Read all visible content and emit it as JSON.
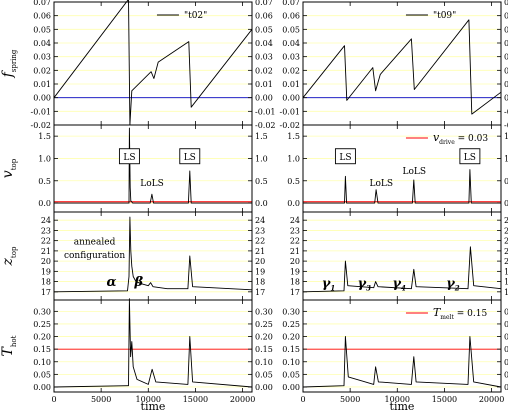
{
  "chart_data": {
    "type": "line",
    "xlabel": "time",
    "xlim": [
      0,
      21000
    ],
    "xticks": [
      0,
      5000,
      10000,
      15000,
      20000
    ],
    "panels": [
      {
        "id": "fs-left",
        "row": 0,
        "col": 0,
        "ylabel": "f",
        "ylabel_sub": "spring",
        "ylim": [
          -0.02,
          0.07
        ],
        "yticks": [
          "-0.02",
          "-0.01",
          "0.00",
          "0.01",
          "0.02",
          "0.03",
          "0.04",
          "0.05",
          "0.06",
          "0.07"
        ],
        "legend": "\"t02\"",
        "hline": {
          "y": 0.0,
          "color": "#0000cc"
        },
        "series": [
          {
            "color": "#000000",
            "points": [
              [
                0,
                0.0
              ],
              [
                7900,
                0.072
              ],
              [
                8050,
                -0.02
              ],
              [
                8250,
                0.005
              ],
              [
                10300,
                0.019
              ],
              [
                10600,
                0.014
              ],
              [
                11050,
                0.026
              ],
              [
                14300,
                0.041
              ],
              [
                14550,
                -0.007
              ],
              [
                21000,
                0.05
              ]
            ]
          }
        ]
      },
      {
        "id": "fs-right",
        "row": 0,
        "col": 1,
        "ylim": [
          -0.02,
          0.07
        ],
        "yticks": [
          "-0.02",
          "-0.01",
          "0.00",
          "0.01",
          "0.02",
          "0.03",
          "0.04",
          "0.05",
          "0.06",
          "0.07"
        ],
        "legend": "\"t09\"",
        "hline": {
          "y": 0.0,
          "color": "#0000cc"
        },
        "series": [
          {
            "color": "#000000",
            "points": [
              [
                0,
                0.0
              ],
              [
                4400,
                0.038
              ],
              [
                4650,
                -0.002
              ],
              [
                7400,
                0.022
              ],
              [
                7700,
                0.005
              ],
              [
                8200,
                0.017
              ],
              [
                11500,
                0.043
              ],
              [
                11800,
                0.006
              ],
              [
                17600,
                0.057
              ],
              [
                17900,
                -0.012
              ],
              [
                21000,
                0.004
              ]
            ]
          }
        ]
      },
      {
        "id": "v-left",
        "row": 1,
        "col": 0,
        "ylabel": "v",
        "ylabel_sub": "top",
        "ylim": [
          -0.2,
          1.75
        ],
        "yticks": [
          "0.0",
          "0.5",
          "1.0",
          "1.5"
        ],
        "hline": {
          "y": 0.03,
          "color": "#ff0000"
        },
        "series": [
          {
            "color": "#000000",
            "points": [
              [
                0,
                0.0
              ],
              [
                7950,
                0.0
              ],
              [
                8000,
                1.68
              ],
              [
                8080,
                0.35
              ],
              [
                8150,
                0.05
              ],
              [
                8350,
                0.0
              ],
              [
                10200,
                0.0
              ],
              [
                10380,
                0.2
              ],
              [
                10550,
                0.0
              ],
              [
                14250,
                0.0
              ],
              [
                14400,
                0.72
              ],
              [
                14550,
                0.0
              ],
              [
                21000,
                0.0
              ]
            ]
          }
        ]
      },
      {
        "id": "v-right",
        "row": 1,
        "col": 1,
        "ylim": [
          -0.2,
          1.75
        ],
        "yticks": [
          "0.0",
          "0.5",
          "1.0",
          "1.5"
        ],
        "legend": "v_drive = 0.03",
        "legend_sym": "v",
        "legend_sub": "drive",
        "legend_val": "= 0.03",
        "hline": {
          "y": 0.03,
          "color": "#ff0000"
        },
        "series": [
          {
            "color": "#000000",
            "points": [
              [
                0,
                0.0
              ],
              [
                4400,
                0.0
              ],
              [
                4500,
                0.6
              ],
              [
                4620,
                0.0
              ],
              [
                7600,
                0.0
              ],
              [
                7750,
                0.3
              ],
              [
                7950,
                0.0
              ],
              [
                11600,
                0.0
              ],
              [
                11750,
                0.52
              ],
              [
                11900,
                0.0
              ],
              [
                17600,
                0.0
              ],
              [
                17700,
                0.75
              ],
              [
                17850,
                0.0
              ],
              [
                21000,
                0.0
              ]
            ]
          }
        ]
      },
      {
        "id": "z-left",
        "row": 2,
        "col": 0,
        "ylabel": "z",
        "ylabel_sub": "top",
        "ylim": [
          16.2,
          24.8
        ],
        "yticks": [
          "17",
          "18",
          "19",
          "20",
          "21",
          "22",
          "23",
          "24"
        ],
        "series": [
          {
            "color": "#000000",
            "points": [
              [
                0,
                17.0
              ],
              [
                7800,
                17.1
              ],
              [
                7950,
                18.5
              ],
              [
                8050,
                24.3
              ],
              [
                8150,
                21.0
              ],
              [
                8250,
                19.5
              ],
              [
                8400,
                18.5
              ],
              [
                8700,
                18.0
              ],
              [
                9200,
                17.8
              ],
              [
                10000,
                17.6
              ],
              [
                10250,
                17.9
              ],
              [
                10500,
                17.5
              ],
              [
                12000,
                17.3
              ],
              [
                14200,
                17.3
              ],
              [
                14400,
                20.5
              ],
              [
                14700,
                17.5
              ],
              [
                21000,
                17.2
              ]
            ]
          }
        ]
      },
      {
        "id": "z-right",
        "row": 2,
        "col": 1,
        "ylim": [
          16.2,
          24.8
        ],
        "yticks": [
          "17",
          "18",
          "19",
          "20",
          "21",
          "22",
          "23",
          "24"
        ],
        "series": [
          {
            "color": "#000000",
            "points": [
              [
                0,
                17.0
              ],
              [
                4350,
                17.1
              ],
              [
                4500,
                20.0
              ],
              [
                4750,
                17.6
              ],
              [
                7500,
                17.4
              ],
              [
                7700,
                18.0
              ],
              [
                7950,
                17.5
              ],
              [
                11500,
                17.3
              ],
              [
                11750,
                19.2
              ],
              [
                12000,
                17.5
              ],
              [
                17500,
                17.3
              ],
              [
                17750,
                21.4
              ],
              [
                18100,
                17.6
              ],
              [
                21000,
                17.3
              ]
            ]
          }
        ]
      },
      {
        "id": "t-left",
        "row": 3,
        "col": 0,
        "ylabel": "T",
        "ylabel_sub": "hot",
        "ylim": [
          -0.02,
          0.345
        ],
        "yticks": [
          "0.00",
          "0.05",
          "0.10",
          "0.15",
          "0.20",
          "0.25",
          "0.30"
        ],
        "hline": {
          "y": 0.15,
          "color": "#ff0000"
        },
        "series": [
          {
            "color": "#000000",
            "points": [
              [
                0,
                0.0
              ],
              [
                7900,
                0.005
              ],
              [
                8000,
                0.35
              ],
              [
                8120,
                0.12
              ],
              [
                8250,
                0.18
              ],
              [
                8400,
                0.08
              ],
              [
                8800,
                0.03
              ],
              [
                10000,
                0.01
              ],
              [
                10400,
                0.07
              ],
              [
                10800,
                0.02
              ],
              [
                14200,
                0.01
              ],
              [
                14400,
                0.2
              ],
              [
                14700,
                0.02
              ],
              [
                21000,
                0.0
              ]
            ]
          }
        ]
      },
      {
        "id": "t-right",
        "row": 3,
        "col": 1,
        "ylim": [
          -0.02,
          0.345
        ],
        "yticks": [
          "0.00",
          "0.05",
          "0.10",
          "0.15",
          "0.20",
          "0.25",
          "0.30"
        ],
        "legend": "T_melt = 0.15",
        "legend_sym": "T",
        "legend_sub": "melt",
        "legend_val": "= 0.15",
        "hline": {
          "y": 0.15,
          "color": "#ff0000"
        },
        "series": [
          {
            "color": "#000000",
            "points": [
              [
                0,
                0.0
              ],
              [
                4350,
                0.005
              ],
              [
                4500,
                0.2
              ],
              [
                4800,
                0.04
              ],
              [
                7500,
                0.01
              ],
              [
                7700,
                0.08
              ],
              [
                8000,
                0.02
              ],
              [
                11500,
                0.01
              ],
              [
                11750,
                0.12
              ],
              [
                12000,
                0.02
              ],
              [
                17500,
                0.01
              ],
              [
                17700,
                0.2
              ],
              [
                18100,
                0.02
              ],
              [
                21000,
                0.0
              ]
            ]
          }
        ]
      }
    ],
    "annotations": [
      {
        "id": "ls-l1",
        "panel": "v-left",
        "text": "LS",
        "x": 8000,
        "y": 1.05,
        "boxed": true
      },
      {
        "id": "ls-l2",
        "panel": "v-left",
        "text": "LS",
        "x": 14400,
        "y": 1.05,
        "boxed": true
      },
      {
        "id": "lols-l",
        "panel": "v-left",
        "text": "LoLS",
        "x": 10400,
        "y": 0.45,
        "boxed": false
      },
      {
        "id": "ls-r1",
        "panel": "v-right",
        "text": "LS",
        "x": 4500,
        "y": 1.05,
        "boxed": true
      },
      {
        "id": "lols-r1",
        "panel": "v-right",
        "text": "LoLS",
        "x": 8300,
        "y": 0.45,
        "boxed": false
      },
      {
        "id": "lols-r2",
        "panel": "v-right",
        "text": "LoLS",
        "x": 11800,
        "y": 0.72,
        "boxed": false
      },
      {
        "id": "ls-r2",
        "panel": "v-right",
        "text": "LS",
        "x": 17700,
        "y": 1.05,
        "boxed": true
      },
      {
        "id": "annealed-1",
        "panel": "z-left",
        "text": "annealed",
        "x": 4300,
        "y": 21.9,
        "boxed": false
      },
      {
        "id": "annealed-2",
        "panel": "z-left",
        "text": "configuration",
        "x": 4300,
        "y": 20.6,
        "boxed": false
      },
      {
        "id": "alpha",
        "panel": "z-left",
        "text": "α",
        "x": 6100,
        "y": 17.85,
        "color": "#000000"
      },
      {
        "id": "beta",
        "panel": "z-left",
        "text": "β",
        "x": 9000,
        "y": 17.85,
        "color": "#33cc33"
      },
      {
        "id": "g1",
        "panel": "z-right",
        "text": "γ",
        "sub": "1",
        "x": 2700,
        "y": 17.7,
        "color": "#cc0000"
      },
      {
        "id": "g3",
        "panel": "z-right",
        "text": "γ",
        "sub": "3",
        "x": 6500,
        "y": 17.7,
        "color": "#0000cc"
      },
      {
        "id": "g4",
        "panel": "z-right",
        "text": "γ",
        "sub": "4",
        "x": 10200,
        "y": 17.7,
        "color": "#0000cc"
      },
      {
        "id": "g2",
        "panel": "z-right",
        "text": "γ",
        "sub": "2",
        "x": 15900,
        "y": 17.7,
        "color": "#cc0000"
      }
    ]
  }
}
